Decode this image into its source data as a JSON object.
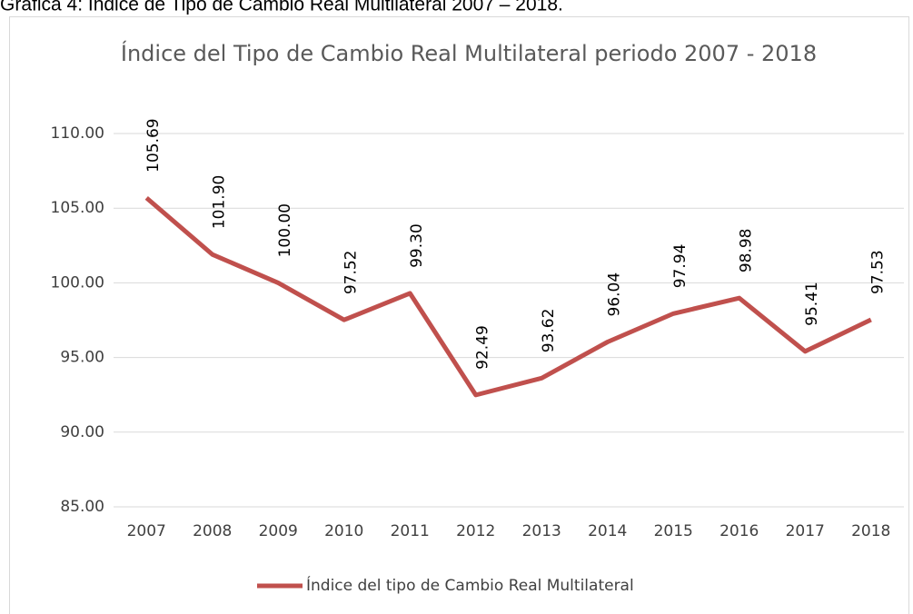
{
  "caption": "Gráfica 4: Índice de Tipo de Cambio Real Multilateral 2007 – 2018.",
  "chart_data": {
    "type": "line",
    "title": "Índice del Tipo de Cambio Real Multilateral periodo 2007 - 2018",
    "categories": [
      "2007",
      "2008",
      "2009",
      "2010",
      "2011",
      "2012",
      "2013",
      "2014",
      "2015",
      "2016",
      "2017",
      "2018"
    ],
    "series": [
      {
        "name": "Índice del tipo de Cambio Real Multilateral",
        "color": "#c0504d",
        "values": [
          105.69,
          101.9,
          100,
          97.52,
          99.3,
          92.49,
          93.62,
          96.04,
          97.94,
          98.98,
          95.41,
          97.53
        ],
        "value_labels": [
          "105.69",
          "101.90",
          "100.00",
          "97.52",
          "99.30",
          "92.49",
          "93.62",
          "96.04",
          "97.94",
          "98.98",
          "95.41",
          "97.53"
        ]
      }
    ],
    "ylim": [
      85,
      110
    ],
    "yticks": [
      {
        "value": 85,
        "label": "85.00"
      },
      {
        "value": 90,
        "label": "90.00"
      },
      {
        "value": 95,
        "label": "95.00"
      },
      {
        "value": 100,
        "label": "100.00"
      },
      {
        "value": 105,
        "label": "105.00"
      },
      {
        "value": 110,
        "label": "110.00"
      }
    ],
    "grid": true,
    "legend": "bottom"
  }
}
